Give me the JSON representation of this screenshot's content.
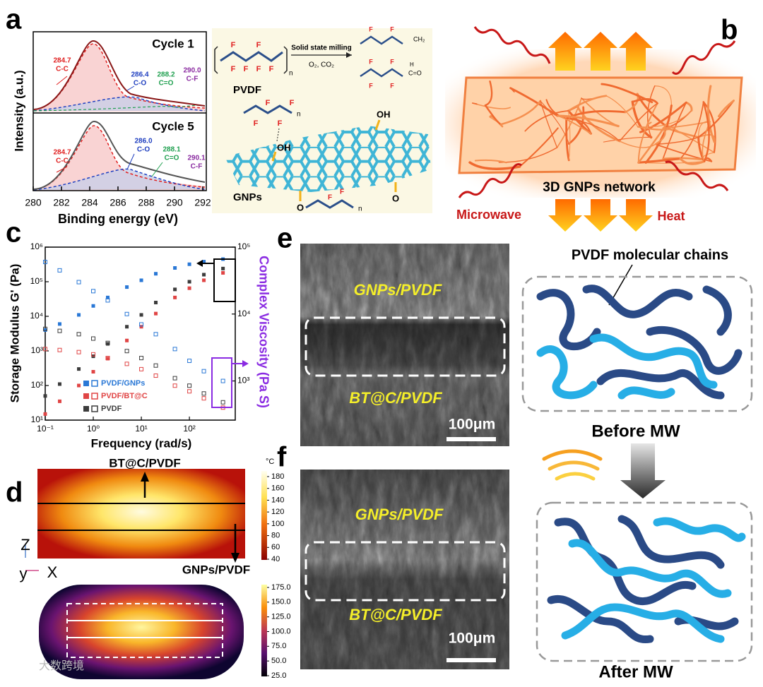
{
  "panel_labels": [
    "a",
    "b",
    "c",
    "d",
    "e",
    "f"
  ],
  "panel_a": {
    "ylabel": "Intensity (a.u.)",
    "xlabel": "Binding energy (eV)",
    "xticks": [
      280,
      282,
      284,
      286,
      288,
      290,
      292
    ],
    "cycles": [
      {
        "title": "Cycle 1",
        "peaks": [
          {
            "position": "284.7",
            "label": "C-C"
          },
          {
            "position": "286.4",
            "label": "C-O"
          },
          {
            "position": "288.2",
            "label": "C=O"
          },
          {
            "position": "290.0",
            "label": "C-F"
          }
        ]
      },
      {
        "title": "Cycle 5",
        "peaks": [
          {
            "position": "284.7",
            "label": "C-C"
          },
          {
            "position": "286.0",
            "label": "C-O"
          },
          {
            "position": "288.1",
            "label": "C=O"
          },
          {
            "position": "290.1",
            "label": "C-F"
          }
        ]
      }
    ]
  },
  "scheme": {
    "reaction": "Solid state milling",
    "conditions": "O₂, CO₂",
    "polymer": "PVDF",
    "filler": "GNPs",
    "fluorine": "F",
    "hydroxyl": "OH",
    "oxygen": "O",
    "hydrogen": "H",
    "repeat": "n",
    "methylene": "CH₂",
    "carbonyl": "C=O"
  },
  "panel_b": {
    "network": "3D GNPs network",
    "input": "Microwave",
    "output": "Heat"
  },
  "chart_data": {
    "type": "scatter",
    "xlabel": "Frequency (rad/s)",
    "ylabel": "Storage Modulus G' (Pa)",
    "y2label": "Complex Viscosity (Pa S)",
    "xscale": "log",
    "yscale": "log",
    "y2scale": "log",
    "xlim": [
      0.1,
      900
    ],
    "ylim": [
      10,
      1000000
    ],
    "y2lim": [
      260,
      100000
    ],
    "xticks": [
      {
        "value": 0.1,
        "label": "10⁻¹"
      },
      {
        "value": 1,
        "label": "10⁰"
      },
      {
        "value": 10,
        "label": "10¹"
      },
      {
        "value": 100,
        "label": "10²"
      }
    ],
    "yticks": [
      {
        "value": 10,
        "label": "10¹"
      },
      {
        "value": 100,
        "label": "10²"
      },
      {
        "value": 1000,
        "label": "10³"
      },
      {
        "value": 10000,
        "label": "10⁴"
      },
      {
        "value": 100000,
        "label": "10⁵"
      },
      {
        "value": 1000000,
        "label": "10⁶"
      }
    ],
    "y2ticks": [
      {
        "value": 1000,
        "label": "10³"
      },
      {
        "value": 10000,
        "label": "10⁴"
      },
      {
        "value": 100000,
        "label": "10⁵"
      }
    ],
    "x": [
      0.1,
      0.2,
      0.5,
      1,
      2,
      5,
      10,
      20,
      50,
      100,
      200,
      500
    ],
    "legend_position": "lower left",
    "series": [
      {
        "name": "PVDF/GNPs",
        "color": "#2a78d6",
        "marker": "filled",
        "axis": "y",
        "values": [
          4000,
          6000,
          11000,
          20000,
          35000,
          70000,
          110000,
          170000,
          250000,
          320000,
          380000,
          450000
        ]
      },
      {
        "name": "PVDF/BT@C",
        "color": "#e04545",
        "marker": "filled",
        "axis": "y",
        "values": [
          15,
          35,
          100,
          250,
          600,
          2000,
          5000,
          12000,
          35000,
          65000,
          110000,
          180000
        ]
      },
      {
        "name": "PVDF",
        "color": "#3c3c3c",
        "marker": "filled",
        "axis": "y",
        "values": [
          50,
          110,
          300,
          700,
          1600,
          5000,
          11000,
          25000,
          60000,
          100000,
          160000,
          240000
        ]
      },
      {
        "name": "PVDF/GNPs",
        "color": "#2a78d6",
        "marker": "open",
        "axis": "y2",
        "values": [
          60000,
          45000,
          30000,
          22000,
          16000,
          10000,
          7000,
          5000,
          3000,
          2000,
          1400,
          1000
        ]
      },
      {
        "name": "PVDF/BT@C",
        "color": "#e04545",
        "marker": "open",
        "axis": "y2",
        "values": [
          3000,
          2900,
          2700,
          2500,
          2200,
          1800,
          1500,
          1200,
          850,
          700,
          550,
          400
        ]
      },
      {
        "name": "PVDF",
        "color": "#3c3c3c",
        "marker": "open",
        "axis": "y2",
        "values": [
          6000,
          5600,
          5000,
          4300,
          3700,
          2800,
          2200,
          1700,
          1100,
          850,
          650,
          480
        ]
      }
    ]
  },
  "panel_d": {
    "top_layer": "BT@C/PVDF",
    "bottom_layer": "GNPs/PVDF",
    "axis_z": "Z",
    "axis_x": "X",
    "axis_y": "y",
    "colorbar1": {
      "unit": "°C",
      "ticks": [
        180,
        160,
        140,
        120,
        100,
        80,
        60,
        40
      ]
    },
    "colorbar2": {
      "ticks": [
        {
          "value": 175,
          "label": "175.0"
        },
        {
          "value": 150,
          "label": "150.0"
        },
        {
          "value": 125,
          "label": "125.0"
        },
        {
          "value": 100,
          "label": "100.0"
        },
        {
          "value": 75,
          "label": "75.0"
        },
        {
          "value": 50,
          "label": "50.0"
        },
        {
          "value": 25,
          "label": "25.0"
        }
      ]
    }
  },
  "panel_e": {
    "top_layer": "GNPs/PVDF",
    "bottom_layer": "BT@C/PVDF",
    "scale": "100μm"
  },
  "panel_f": {
    "top_layer": "GNPs/PVDF",
    "bottom_layer": "BT@C/PVDF",
    "scale": "100μm"
  },
  "chains": {
    "callout": "PVDF molecular chains",
    "before": "Before MW",
    "after": "After MW"
  },
  "watermark": "大数跨境"
}
